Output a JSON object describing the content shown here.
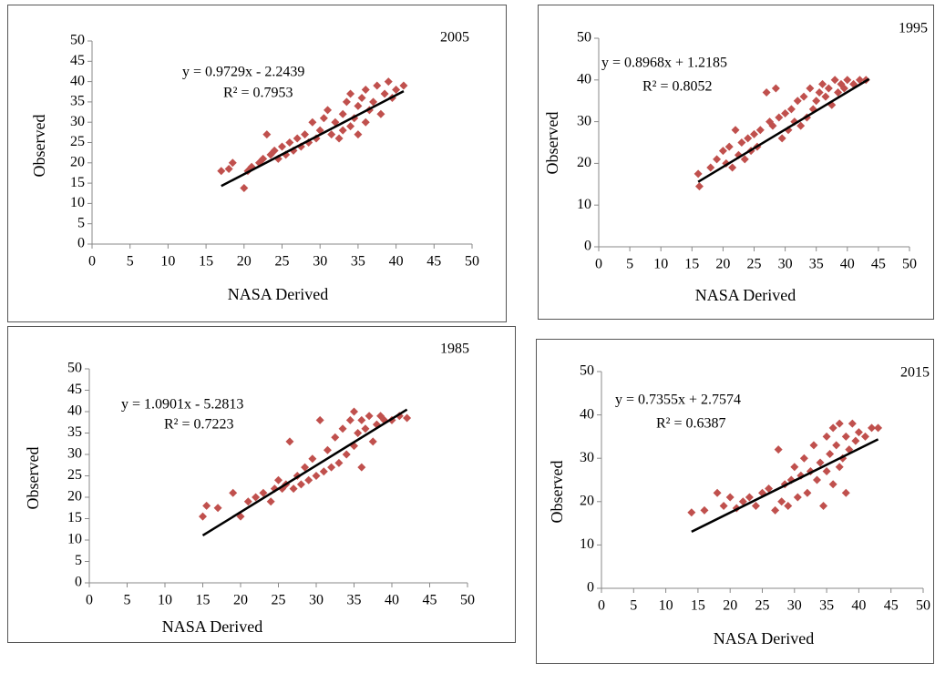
{
  "chart_data": [
    {
      "type": "scatter",
      "title": "2005",
      "x_label": "NASA Derived",
      "y_label": "Observed",
      "color": "#c0504d",
      "xlim": [
        0,
        50
      ],
      "ylim": [
        0,
        50
      ],
      "xticks": [
        0,
        5,
        10,
        15,
        20,
        25,
        30,
        35,
        40,
        45,
        50
      ],
      "yticks": [
        0,
        5,
        10,
        15,
        20,
        25,
        30,
        35,
        40,
        45,
        50
      ],
      "x": [
        17,
        18,
        18.5,
        20,
        20.5,
        21,
        22,
        22.5,
        23,
        23.5,
        24,
        24.5,
        25,
        25.5,
        26,
        26.5,
        27,
        27.5,
        28,
        28.5,
        29,
        29.5,
        30,
        30.5,
        31,
        31.5,
        32,
        32.5,
        33,
        33,
        33.5,
        34,
        34,
        34.5,
        35,
        35,
        35.5,
        36,
        36,
        36.5,
        37,
        37.5,
        38,
        38.5,
        39,
        39.5,
        40,
        41
      ],
      "values": [
        18,
        18.5,
        20,
        13.8,
        18,
        19,
        20,
        21,
        27,
        22,
        23,
        21,
        24,
        22,
        25,
        23,
        26,
        24,
        27,
        25,
        30,
        26,
        28,
        31,
        33,
        27,
        30,
        26,
        32,
        28,
        35,
        29,
        37,
        31,
        34,
        27,
        36,
        30,
        38,
        33,
        35,
        39,
        32,
        37,
        40,
        36,
        38,
        39
      ],
      "trendline": {
        "equation": "y = 0.9729x - 2.2439",
        "r2": "R² = 0.7953",
        "slope": 0.9729,
        "intercept": -2.2439,
        "x": [
          17,
          41
        ]
      }
    },
    {
      "type": "scatter",
      "title": "1995",
      "x_label": "NASA Derived",
      "y_label": "Observed",
      "color": "#c0504d",
      "xlim": [
        0,
        50
      ],
      "ylim": [
        0,
        50
      ],
      "xticks": [
        0,
        5,
        10,
        15,
        20,
        25,
        30,
        35,
        40,
        45,
        50
      ],
      "yticks": [
        0,
        10,
        20,
        30,
        40,
        50
      ],
      "x": [
        16,
        16.2,
        18,
        19,
        20,
        20.5,
        21,
        21.5,
        22,
        22.5,
        23,
        23.5,
        24,
        24.5,
        25,
        25.5,
        26,
        27,
        27.5,
        28,
        28.5,
        29,
        29.5,
        30,
        30.5,
        31,
        31.5,
        32,
        32.5,
        33,
        33.5,
        34,
        34.5,
        35,
        35.5,
        36,
        36.5,
        37,
        37.5,
        38,
        38.5,
        39,
        39.5,
        40,
        41,
        42,
        43
      ],
      "values": [
        17.5,
        14.5,
        19,
        21,
        23,
        20,
        24,
        19,
        28,
        22,
        25,
        21,
        26,
        23,
        27,
        24,
        28,
        37,
        30,
        29,
        38,
        31,
        26,
        32,
        28,
        33,
        30,
        35,
        29,
        36,
        31,
        38,
        33,
        35,
        37,
        39,
        36,
        38,
        34,
        40,
        37,
        39,
        38,
        40,
        39,
        40,
        40
      ],
      "trendline": {
        "equation": "y = 0.8968x + 1.2185",
        "r2": "R² = 0.8052",
        "slope": 0.8968,
        "intercept": 1.2185,
        "x": [
          16,
          43.5
        ]
      }
    },
    {
      "type": "scatter",
      "title": "1985",
      "x_label": "NASA Derived",
      "y_label": "Observed",
      "color": "#c0504d",
      "xlim": [
        0,
        50
      ],
      "ylim": [
        0,
        50
      ],
      "xticks": [
        0,
        5,
        10,
        15,
        20,
        25,
        30,
        35,
        40,
        45,
        50
      ],
      "yticks": [
        0,
        5,
        10,
        15,
        20,
        25,
        30,
        35,
        40,
        45,
        50
      ],
      "x": [
        15,
        15.5,
        17,
        19,
        20,
        21,
        22,
        23,
        24,
        24.5,
        25,
        25.5,
        26,
        26.5,
        27,
        27.5,
        28,
        28.5,
        29,
        29.5,
        30,
        30.5,
        31,
        31.5,
        32,
        32.5,
        33,
        33.5,
        34,
        34.5,
        35,
        35,
        35.5,
        36,
        36,
        36.5,
        37,
        37.5,
        38,
        38.5,
        39,
        40,
        41,
        42
      ],
      "values": [
        15.5,
        18,
        17.5,
        21,
        15.5,
        19,
        20,
        21,
        19,
        22,
        24,
        22,
        23,
        33,
        22,
        25,
        23,
        27,
        24,
        29,
        25,
        38,
        26,
        31,
        27,
        34,
        28,
        36,
        30,
        38,
        40,
        32,
        35,
        27,
        38,
        36,
        39,
        33,
        37,
        39,
        38,
        38,
        39,
        38.5
      ],
      "trendline": {
        "equation": "y = 1.0901x - 5.2813",
        "r2": "R² = 0.7223",
        "slope": 1.0901,
        "intercept": -5.2813,
        "x": [
          15,
          42
        ]
      }
    },
    {
      "type": "scatter",
      "title": "2015",
      "x_label": "NASA Derived",
      "y_label": "Observed",
      "color": "#c0504d",
      "xlim": [
        0,
        50
      ],
      "ylim": [
        0,
        50
      ],
      "xticks": [
        0,
        5,
        10,
        15,
        20,
        25,
        30,
        35,
        40,
        45,
        50
      ],
      "yticks": [
        0,
        10,
        20,
        30,
        40,
        50
      ],
      "x": [
        14,
        16,
        18,
        19,
        20,
        21,
        22,
        23,
        24,
        25,
        26,
        27,
        27.5,
        28,
        28.5,
        29,
        29.5,
        30,
        30.5,
        31,
        31.5,
        32,
        32.5,
        33,
        33.5,
        34,
        34.5,
        35,
        35,
        35.5,
        36,
        36,
        36.5,
        37,
        37,
        37.5,
        38,
        38,
        38.5,
        39,
        39.5,
        40,
        41,
        42,
        43
      ],
      "values": [
        17.5,
        18,
        22,
        19,
        21,
        18.5,
        20,
        21,
        19,
        22,
        23,
        18,
        32,
        20,
        24,
        19,
        25,
        28,
        21,
        26,
        30,
        22,
        27,
        33,
        25,
        29,
        19,
        35,
        27,
        31,
        24,
        37,
        33,
        38,
        28,
        30,
        35,
        22,
        32,
        38,
        34,
        36,
        35,
        37,
        37
      ],
      "trendline": {
        "equation": "y = 0.7355x + 2.7574",
        "r2": "R² = 0.6387",
        "slope": 0.7355,
        "intercept": 2.7574,
        "x": [
          14,
          43
        ]
      }
    }
  ]
}
